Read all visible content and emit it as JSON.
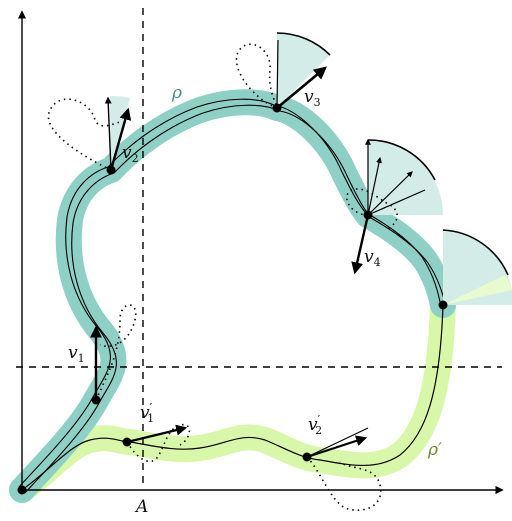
{
  "labels": {
    "rho": "ρ",
    "rho_prime": "ρ′",
    "axis_A": "A",
    "v1": "v",
    "v1_sub": "1",
    "v2": "v",
    "v2_sub": "2",
    "v3": "v",
    "v3_sub": "3",
    "v4": "v",
    "v4_sub": "4",
    "v1p": "v",
    "v1p_sub": "1",
    "v1p_prime": "′",
    "v2p": "v",
    "v2p_sub": "2",
    "v2p_prime": "′"
  },
  "colors": {
    "rho_band": "#8fd0c6",
    "rho_prime_band": "#d9f7a8",
    "cone_fill": "#d4ece8",
    "cone_fill_light": "#eafad0",
    "ink": "#000000"
  }
}
